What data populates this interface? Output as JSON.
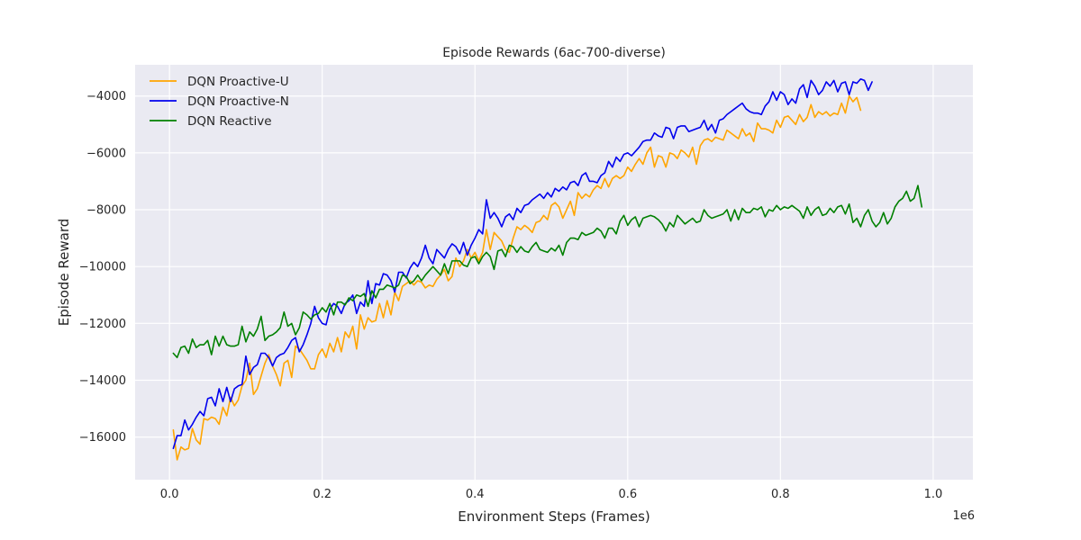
{
  "chart_data": {
    "type": "line",
    "title": "Episode Rewards (6ac-700-diverse)",
    "xlabel": "Environment Steps (Frames)",
    "ylabel": "Episode Reward",
    "x_offset_label": "1e6",
    "xlim": [
      -0.045,
      1.052
    ],
    "ylim": [
      -17500,
      -2900
    ],
    "x_ticks": [
      0.0,
      0.2,
      0.4,
      0.6,
      0.8,
      1.0
    ],
    "x_tick_labels": [
      "0.0",
      "0.2",
      "0.4",
      "0.6",
      "0.8",
      "1.0"
    ],
    "y_ticks": [
      -16000,
      -14000,
      -12000,
      -10000,
      -8000,
      -6000,
      -4000
    ],
    "y_tick_labels": [
      "−16000",
      "−14000",
      "−12000",
      "−10000",
      "−8000",
      "−6000",
      "−4000"
    ],
    "grid": true,
    "legend_position": "top-left",
    "x_min": 0.005,
    "x_step": 0.005,
    "series": [
      {
        "name": "DQN Proactive-U",
        "color": "#FFA500",
        "values": [
          -15750,
          -16800,
          -16350,
          -16450,
          -16400,
          -15700,
          -16100,
          -16250,
          -15350,
          -15400,
          -15300,
          -15350,
          -15550,
          -14950,
          -15250,
          -14600,
          -14900,
          -14700,
          -14200,
          -14000,
          -13400,
          -14500,
          -14300,
          -13850,
          -13400,
          -13100,
          -13500,
          -13800,
          -14200,
          -13400,
          -13300,
          -13900,
          -12800,
          -12900,
          -13100,
          -13300,
          -13600,
          -13600,
          -13100,
          -12900,
          -13200,
          -12700,
          -13000,
          -12500,
          -13000,
          -12300,
          -12500,
          -12100,
          -12900,
          -11700,
          -12200,
          -11800,
          -11950,
          -11900,
          -11300,
          -11800,
          -11200,
          -11700,
          -10900,
          -11200,
          -10700,
          -10600,
          -10500,
          -10650,
          -10500,
          -10550,
          -10750,
          -10650,
          -10700,
          -10450,
          -10300,
          -10100,
          -10500,
          -10350,
          -9700,
          -10000,
          -9800,
          -9400,
          -9700,
          -9500,
          -9800,
          -9500,
          -8700,
          -9400,
          -8800,
          -8950,
          -9100,
          -9400,
          -9500,
          -9000,
          -8600,
          -8700,
          -8550,
          -8650,
          -8800,
          -8450,
          -8400,
          -8200,
          -8350,
          -7850,
          -7750,
          -7900,
          -8300,
          -8000,
          -7700,
          -8200,
          -7400,
          -7600,
          -7450,
          -7550,
          -7300,
          -7150,
          -7250,
          -6900,
          -7200,
          -6900,
          -6800,
          -6900,
          -6800,
          -6500,
          -6650,
          -6400,
          -6200,
          -6400,
          -6000,
          -5800,
          -6500,
          -6100,
          -6150,
          -6500,
          -6000,
          -6050,
          -6200,
          -5900,
          -6000,
          -6150,
          -5800,
          -6400,
          -5750,
          -5550,
          -5500,
          -5600,
          -5450,
          -5500,
          -5550,
          -5200,
          -5300,
          -5400,
          -5500,
          -5150,
          -5400,
          -5300,
          -5600,
          -4950,
          -5150,
          -5150,
          -5200,
          -5300,
          -4850,
          -5100,
          -4750,
          -4700,
          -4850,
          -5000,
          -4650,
          -4900,
          -4750,
          -4300,
          -4750,
          -4550,
          -4650,
          -4550,
          -4700,
          -4600,
          -4650,
          -4250,
          -4600,
          -4000,
          -4200,
          -4050,
          -4500
        ]
      },
      {
        "name": "DQN Proactive-N",
        "color": "#0000EE",
        "values": [
          -16400,
          -15950,
          -15950,
          -15400,
          -15750,
          -15550,
          -15300,
          -15100,
          -15250,
          -14650,
          -14600,
          -14900,
          -14300,
          -14750,
          -14250,
          -14750,
          -14300,
          -14200,
          -14150,
          -13150,
          -13800,
          -13550,
          -13450,
          -13050,
          -13050,
          -13200,
          -13500,
          -13200,
          -13100,
          -13050,
          -12850,
          -12600,
          -12500,
          -13000,
          -12750,
          -12400,
          -12000,
          -11400,
          -11800,
          -12000,
          -12050,
          -11500,
          -11300,
          -11400,
          -11650,
          -11300,
          -11200,
          -11000,
          -11650,
          -11250,
          -11400,
          -10500,
          -11300,
          -10600,
          -10650,
          -10250,
          -10300,
          -10500,
          -10900,
          -10200,
          -10200,
          -10400,
          -10050,
          -9850,
          -10000,
          -9700,
          -9250,
          -9700,
          -9900,
          -9400,
          -9550,
          -9700,
          -9400,
          -9200,
          -9300,
          -9550,
          -9150,
          -9600,
          -9250,
          -9000,
          -8700,
          -8850,
          -7650,
          -8300,
          -8100,
          -8300,
          -8600,
          -8250,
          -8150,
          -8350,
          -7950,
          -8100,
          -7850,
          -7800,
          -7650,
          -7550,
          -7450,
          -7600,
          -7400,
          -7550,
          -7250,
          -7350,
          -7200,
          -7300,
          -7050,
          -7000,
          -7150,
          -6800,
          -6700,
          -7000,
          -7000,
          -7050,
          -6800,
          -6700,
          -6300,
          -6500,
          -6150,
          -6300,
          -6050,
          -6000,
          -6100,
          -5950,
          -5800,
          -5600,
          -5550,
          -5550,
          -5300,
          -5400,
          -5450,
          -5100,
          -5150,
          -5500,
          -5100,
          -5050,
          -5050,
          -5250,
          -5200,
          -5150,
          -5100,
          -4850,
          -5200,
          -5000,
          -5300,
          -4850,
          -4800,
          -4650,
          -4550,
          -4450,
          -4350,
          -4250,
          -4450,
          -4550,
          -4600,
          -4600,
          -4650,
          -4350,
          -4200,
          -3850,
          -4150,
          -3850,
          -3950,
          -4300,
          -4100,
          -4250,
          -3750,
          -3600,
          -4050,
          -3450,
          -3650,
          -3950,
          -3800,
          -3500,
          -3650,
          -3450,
          -3850,
          -3550,
          -3500,
          -3950,
          -3500,
          -3550,
          -3400,
          -3450,
          -3800,
          -3500
        ]
      },
      {
        "name": "DQN Reactive",
        "color": "#008000",
        "values": [
          -13050,
          -13200,
          -12850,
          -12800,
          -13050,
          -12550,
          -12850,
          -12750,
          -12750,
          -12600,
          -13100,
          -12450,
          -12800,
          -12450,
          -12750,
          -12800,
          -12800,
          -12750,
          -12100,
          -12650,
          -12300,
          -12450,
          -12200,
          -11750,
          -12600,
          -12450,
          -12400,
          -12300,
          -12150,
          -11600,
          -12100,
          -12000,
          -12400,
          -12150,
          -11600,
          -11700,
          -11850,
          -11700,
          -11650,
          -11450,
          -11600,
          -11300,
          -11700,
          -11250,
          -11250,
          -11350,
          -11100,
          -11200,
          -11000,
          -11050,
          -10950,
          -11400,
          -10850,
          -11100,
          -10800,
          -10800,
          -10650,
          -10700,
          -10750,
          -10650,
          -10300,
          -10350,
          -10600,
          -10500,
          -10300,
          -10500,
          -10300,
          -10150,
          -10000,
          -10150,
          -10300,
          -9900,
          -10250,
          -9800,
          -9800,
          -9800,
          -9950,
          -10000,
          -9700,
          -9650,
          -9900,
          -9650,
          -9500,
          -9650,
          -10100,
          -9450,
          -9400,
          -9650,
          -9250,
          -9300,
          -9500,
          -9300,
          -9450,
          -9500,
          -9300,
          -9150,
          -9400,
          -9450,
          -9500,
          -9350,
          -9450,
          -9250,
          -9600,
          -9150,
          -9000,
          -9000,
          -9050,
          -8800,
          -8900,
          -8850,
          -8800,
          -8650,
          -8750,
          -9000,
          -8650,
          -8650,
          -8850,
          -8400,
          -8200,
          -8550,
          -8350,
          -8250,
          -8600,
          -8300,
          -8250,
          -8200,
          -8250,
          -8350,
          -8500,
          -8750,
          -8450,
          -8600,
          -8200,
          -8350,
          -8500,
          -8400,
          -8300,
          -8450,
          -8400,
          -8000,
          -8200,
          -8300,
          -8250,
          -8200,
          -8150,
          -8000,
          -8400,
          -8000,
          -8350,
          -7950,
          -8100,
          -8100,
          -7950,
          -8000,
          -7900,
          -8250,
          -8000,
          -8050,
          -7850,
          -8000,
          -7900,
          -7950,
          -7850,
          -7950,
          -8050,
          -8300,
          -7900,
          -8200,
          -8000,
          -7900,
          -8200,
          -8150,
          -7950,
          -8100,
          -7900,
          -7850,
          -8150,
          -7800,
          -8450,
          -8300,
          -8600,
          -8200,
          -8000,
          -8400,
          -8600,
          -8450,
          -8100,
          -8500,
          -8300,
          -7900,
          -7700,
          -7600,
          -7350,
          -7700,
          -7600,
          -7150,
          -7900
        ]
      }
    ]
  }
}
